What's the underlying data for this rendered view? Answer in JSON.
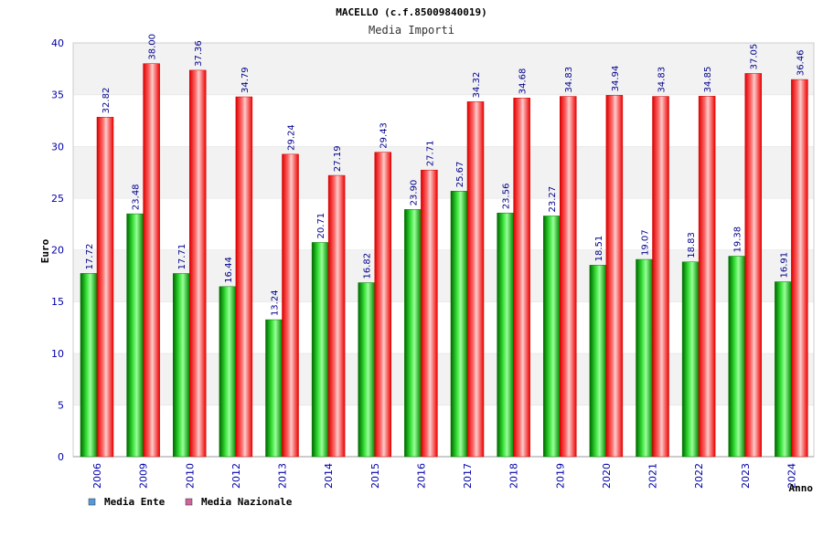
{
  "chart_data": {
    "type": "bar",
    "title": "MACELLO (c.f.85009840019)",
    "subtitle": "Media Importi",
    "xlabel": "Anno",
    "ylabel": "Euro",
    "ylim": [
      0,
      40
    ],
    "yticks": [
      0,
      5,
      10,
      15,
      20,
      25,
      30,
      35,
      40
    ],
    "grid": "horizontal bands",
    "legend_position": "bottom-left",
    "categories": [
      "2006",
      "2009",
      "2010",
      "2012",
      "2013",
      "2014",
      "2015",
      "2016",
      "2017",
      "2018",
      "2019",
      "2020",
      "2021",
      "2022",
      "2023",
      "2024"
    ],
    "series": [
      {
        "name": "Media Ente",
        "color": "#00aa00",
        "legend_color": "#5599dd",
        "values": [
          17.72,
          23.48,
          17.71,
          16.44,
          13.24,
          20.71,
          16.82,
          23.9,
          25.67,
          23.56,
          23.27,
          18.51,
          19.07,
          18.83,
          19.38,
          16.91
        ],
        "labels": [
          "17.72",
          "23.48",
          "17.71",
          "16.44",
          "13.24",
          "20.71",
          "16.82",
          "23.90",
          "25.67",
          "23.56",
          "23.27",
          "18.51",
          "19.07",
          "18.83",
          "19.38",
          "16.91"
        ]
      },
      {
        "name": "Media Nazionale",
        "color": "#ee1111",
        "legend_color": "#cc6699",
        "values": [
          32.82,
          38.0,
          37.36,
          34.79,
          29.24,
          27.19,
          29.43,
          27.71,
          34.32,
          34.68,
          34.83,
          34.94,
          34.83,
          34.85,
          37.05,
          36.46
        ],
        "labels": [
          "32.82",
          "38.00",
          "37.36",
          "34.79",
          "29.24",
          "27.19",
          "29.43",
          "27.71",
          "34.32",
          "34.68",
          "34.83",
          "34.94",
          "34.83",
          "34.85",
          "37.05",
          "36.46"
        ]
      }
    ]
  }
}
